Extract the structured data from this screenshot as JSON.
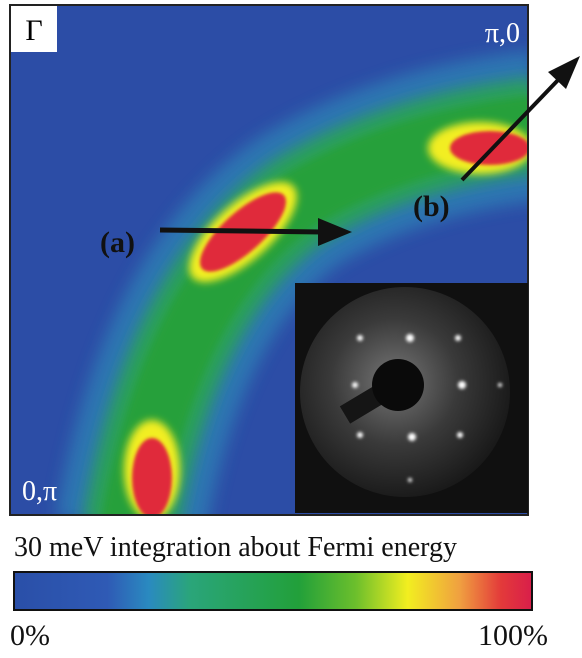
{
  "panel": {
    "corner_labels": {
      "gamma": "Γ",
      "top_right": "π,0",
      "bottom_left": "0,π"
    },
    "annotations": {
      "a": "(a)",
      "b": "(b)"
    }
  },
  "colorbar": {
    "title": "30 meV integration about Fermi energy",
    "min_label": "0%",
    "max_label": "100%"
  }
}
